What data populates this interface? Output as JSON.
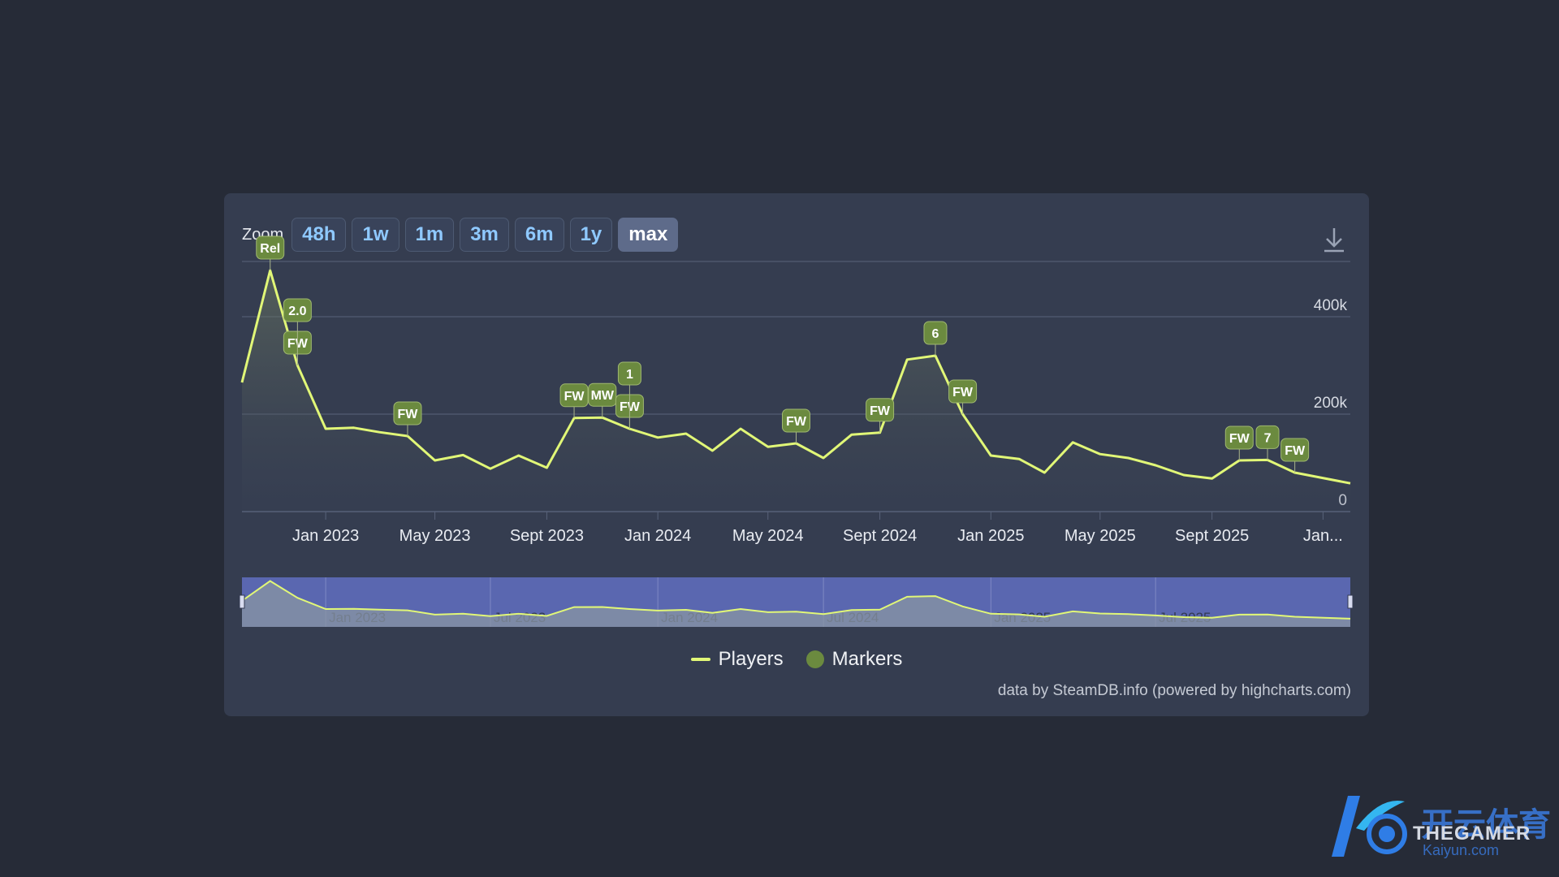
{
  "toolbar": {
    "zoom_label": "Zoom",
    "buttons": [
      "48h",
      "1w",
      "1m",
      "3m",
      "6m",
      "1y",
      "max"
    ],
    "active": "max"
  },
  "legend": {
    "players": "Players",
    "markers": "Markers"
  },
  "credit": "data by SteamDB.info (powered by highcharts.com)",
  "watermark": {
    "chinese": "开云体育",
    "english": "THEGAMER",
    "url": "Kaiyun.com"
  },
  "colors": {
    "line": "#e1f777",
    "marker": "#6b8a3f",
    "navigator_bg": "#5a67b0",
    "grid": "#59637a"
  },
  "chart_data": {
    "type": "line",
    "title": "",
    "xlabel": "",
    "ylabel": "",
    "ylim": [
      0,
      500000
    ],
    "yticks": [
      {
        "value": 0,
        "label": "0"
      },
      {
        "value": 200000,
        "label": "200k"
      },
      {
        "value": 400000,
        "label": "400k"
      }
    ],
    "xlim": [
      "2022-10-01",
      "2026-01-31"
    ],
    "xticks": [
      {
        "date": "2023-01-01",
        "label": "Jan 2023"
      },
      {
        "date": "2023-05-01",
        "label": "May 2023"
      },
      {
        "date": "2023-09-01",
        "label": "Sept 2023"
      },
      {
        "date": "2024-01-01",
        "label": "Jan 2024"
      },
      {
        "date": "2024-05-01",
        "label": "May 2024"
      },
      {
        "date": "2024-09-01",
        "label": "Sept 2024"
      },
      {
        "date": "2025-01-01",
        "label": "Jan 2025"
      },
      {
        "date": "2025-05-01",
        "label": "May 2025"
      },
      {
        "date": "2025-09-01",
        "label": "Sept 2025"
      },
      {
        "date": "2026-01-01",
        "label": "Jan..."
      }
    ],
    "navigator_ticks": [
      {
        "date": "2023-01-01",
        "label": "Jan 2023"
      },
      {
        "date": "2023-07-01",
        "label": "Jul 2023"
      },
      {
        "date": "2024-01-01",
        "label": "Jan 2024"
      },
      {
        "date": "2024-07-01",
        "label": "Jul 2024"
      },
      {
        "date": "2025-01-01",
        "label": "Jan 2025"
      },
      {
        "date": "2025-07-01",
        "label": "Jul 2025"
      }
    ],
    "series": [
      {
        "name": "Players",
        "points": [
          [
            "2022-10-01",
            265000
          ],
          [
            "2022-11-01",
            495000
          ],
          [
            "2022-12-01",
            300000
          ],
          [
            "2023-01-01",
            170000
          ],
          [
            "2023-02-01",
            172000
          ],
          [
            "2023-03-01",
            163000
          ],
          [
            "2023-04-01",
            155000
          ],
          [
            "2023-05-01",
            105000
          ],
          [
            "2023-06-01",
            116000
          ],
          [
            "2023-07-01",
            88000
          ],
          [
            "2023-08-01",
            115000
          ],
          [
            "2023-09-01",
            90000
          ],
          [
            "2023-10-01",
            192000
          ],
          [
            "2023-11-01",
            193000
          ],
          [
            "2023-12-01",
            170000
          ],
          [
            "2024-01-01",
            152000
          ],
          [
            "2024-02-01",
            160000
          ],
          [
            "2024-03-01",
            125000
          ],
          [
            "2024-04-01",
            170000
          ],
          [
            "2024-05-01",
            133000
          ],
          [
            "2024-06-01",
            140000
          ],
          [
            "2024-07-01",
            110000
          ],
          [
            "2024-08-01",
            158000
          ],
          [
            "2024-09-01",
            162000
          ],
          [
            "2024-10-01",
            312000
          ],
          [
            "2024-11-01",
            320000
          ],
          [
            "2024-12-01",
            200000
          ],
          [
            "2025-01-01",
            115000
          ],
          [
            "2025-02-01",
            108000
          ],
          [
            "2025-03-01",
            80000
          ],
          [
            "2025-04-01",
            142000
          ],
          [
            "2025-05-01",
            118000
          ],
          [
            "2025-06-01",
            110000
          ],
          [
            "2025-07-01",
            95000
          ],
          [
            "2025-08-01",
            75000
          ],
          [
            "2025-09-01",
            68000
          ],
          [
            "2025-10-01",
            105000
          ],
          [
            "2025-11-01",
            106000
          ],
          [
            "2025-12-01",
            80000
          ],
          [
            "2026-01-31",
            58000
          ]
        ]
      }
    ],
    "markers": [
      {
        "date": "2022-11-01",
        "label": "Rel",
        "value": 495000
      },
      {
        "date": "2022-12-01",
        "label": "FW",
        "value": 300000
      },
      {
        "date": "2022-12-01",
        "label": "2.0",
        "value": 300000
      },
      {
        "date": "2023-04-01",
        "label": "FW",
        "value": 155000
      },
      {
        "date": "2023-10-01",
        "label": "FW",
        "value": 192000
      },
      {
        "date": "2023-11-01",
        "label": "MW",
        "value": 193000
      },
      {
        "date": "2023-12-01",
        "label": "FW",
        "value": 170000
      },
      {
        "date": "2023-12-01",
        "label": "1",
        "value": 170000
      },
      {
        "date": "2024-06-01",
        "label": "FW",
        "value": 140000
      },
      {
        "date": "2024-09-01",
        "label": "FW",
        "value": 162000
      },
      {
        "date": "2024-11-01",
        "label": "6",
        "value": 320000
      },
      {
        "date": "2024-12-01",
        "label": "FW",
        "value": 200000
      },
      {
        "date": "2025-10-01",
        "label": "FW",
        "value": 105000
      },
      {
        "date": "2025-11-01",
        "label": "7",
        "value": 106000
      },
      {
        "date": "2025-12-01",
        "label": "FW",
        "value": 80000
      }
    ]
  }
}
